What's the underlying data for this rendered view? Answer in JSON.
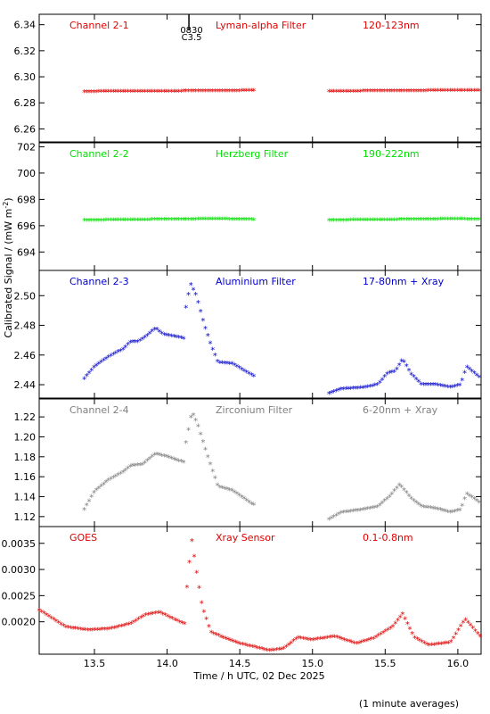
{
  "colors": {
    "red": "#e00000",
    "green": "#00e000",
    "blue": "#0000cc",
    "gray": "#808080",
    "axis": "#000000"
  },
  "flare_marker": {
    "x": 14.15,
    "label_top": "0830",
    "label_bottom": "C3.5"
  },
  "footnote": "(1 minute averages)",
  "chart_data": {
    "type": "scatter",
    "xlabel": "Time / h UTC, 02 Dec 2025",
    "ylabel": "Calibrated Signal / (mW m",
    "ylabel_sup": "-2",
    "ylabel_end": ")",
    "xlim": [
      13.12,
      16.16
    ],
    "xticks": [
      "13.5",
      "14.0",
      "14.5",
      "15.0",
      "15.5",
      "16.0"
    ],
    "xtick_values": [
      13.5,
      14.0,
      14.5,
      15.0,
      15.5,
      16.0
    ],
    "panels": [
      {
        "name": "Channel 2-1",
        "filter": "Lyman-alpha Filter",
        "band": "120-123nm",
        "color": "red",
        "ylim": [
          6.25,
          6.348
        ],
        "yticks": [
          "6.26",
          "6.28",
          "6.30",
          "6.32",
          "6.34"
        ],
        "ytick_values": [
          6.26,
          6.28,
          6.3,
          6.32,
          6.34
        ],
        "keys": [
          [
            13.43,
            6.2885
          ],
          [
            14.0,
            6.2888
          ],
          [
            14.59,
            6.2893
          ],
          [
            15.11,
            6.2887
          ],
          [
            15.6,
            6.2891
          ],
          [
            16.16,
            6.2895
          ]
        ],
        "gaps": [
          [
            14.6,
            15.1
          ]
        ]
      },
      {
        "name": "Channel 2-2",
        "filter": "Herzberg Filter",
        "band": "190-222nm",
        "color": "green",
        "ylim": [
          692.6,
          702.3
        ],
        "yticks": [
          "694",
          "696",
          "698",
          "700",
          "702"
        ],
        "ytick_values": [
          694,
          696,
          698,
          700,
          702
        ],
        "keys": [
          [
            13.43,
            696.4
          ],
          [
            13.9,
            696.45
          ],
          [
            14.35,
            696.5
          ],
          [
            14.59,
            696.45
          ],
          [
            15.11,
            696.4
          ],
          [
            15.6,
            696.45
          ],
          [
            16.0,
            696.5
          ],
          [
            16.16,
            696.45
          ]
        ],
        "gaps": [
          [
            14.6,
            15.1
          ]
        ]
      },
      {
        "name": "Channel 2-3",
        "filter": "Aluminium Filter",
        "band": "17-80nm + Xray",
        "color": "blue",
        "ylim": [
          2.431,
          2.517
        ],
        "yticks": [
          "2.44",
          "2.46",
          "2.48",
          "2.50"
        ],
        "ytick_values": [
          2.44,
          2.46,
          2.48,
          2.5
        ],
        "keys": [
          [
            13.43,
            2.444
          ],
          [
            13.5,
            2.452
          ],
          [
            13.6,
            2.459
          ],
          [
            13.7,
            2.464
          ],
          [
            13.75,
            2.469
          ],
          [
            13.8,
            2.469
          ],
          [
            13.85,
            2.472
          ],
          [
            13.92,
            2.478
          ],
          [
            13.97,
            2.474
          ],
          [
            14.12,
            2.471
          ],
          [
            14.13,
            2.492
          ],
          [
            14.16,
            2.508
          ],
          [
            14.2,
            2.5
          ],
          [
            14.25,
            2.482
          ],
          [
            14.3,
            2.467
          ],
          [
            14.35,
            2.455
          ],
          [
            14.45,
            2.454
          ],
          [
            14.59,
            2.446
          ],
          [
            15.11,
            2.434
          ],
          [
            15.2,
            2.437
          ],
          [
            15.35,
            2.438
          ],
          [
            15.45,
            2.44
          ],
          [
            15.52,
            2.448
          ],
          [
            15.57,
            2.449
          ],
          [
            15.62,
            2.457
          ],
          [
            15.68,
            2.447
          ],
          [
            15.75,
            2.44
          ],
          [
            15.85,
            2.44
          ],
          [
            15.95,
            2.438
          ],
          [
            16.02,
            2.44
          ],
          [
            16.06,
            2.452
          ],
          [
            16.16,
            2.444
          ]
        ],
        "gaps": [
          [
            14.6,
            15.1
          ]
        ]
      },
      {
        "name": "Channel 2-4",
        "filter": "Zirconium Filter",
        "band": "6-20nm + Xray",
        "color": "gray",
        "ylim": [
          1.11,
          1.238
        ],
        "yticks": [
          "1.12",
          "1.14",
          "1.16",
          "1.18",
          "1.20",
          "1.22"
        ],
        "ytick_values": [
          1.12,
          1.14,
          1.16,
          1.18,
          1.2,
          1.22
        ],
        "keys": [
          [
            13.43,
            1.127
          ],
          [
            13.5,
            1.145
          ],
          [
            13.6,
            1.157
          ],
          [
            13.7,
            1.165
          ],
          [
            13.75,
            1.171
          ],
          [
            13.83,
            1.172
          ],
          [
            13.92,
            1.183
          ],
          [
            14.0,
            1.18
          ],
          [
            14.12,
            1.174
          ],
          [
            14.13,
            1.194
          ],
          [
            14.17,
            1.225
          ],
          [
            14.21,
            1.212
          ],
          [
            14.28,
            1.18
          ],
          [
            14.35,
            1.15
          ],
          [
            14.45,
            1.146
          ],
          [
            14.59,
            1.132
          ],
          [
            15.11,
            1.117
          ],
          [
            15.2,
            1.124
          ],
          [
            15.35,
            1.127
          ],
          [
            15.45,
            1.13
          ],
          [
            15.53,
            1.14
          ],
          [
            15.6,
            1.152
          ],
          [
            15.68,
            1.138
          ],
          [
            15.75,
            1.13
          ],
          [
            15.85,
            1.128
          ],
          [
            15.95,
            1.124
          ],
          [
            16.02,
            1.127
          ],
          [
            16.06,
            1.143
          ],
          [
            16.16,
            1.133
          ]
        ],
        "gaps": [
          [
            14.6,
            15.1
          ]
        ]
      },
      {
        "name": "GOES",
        "filter": "Xray Sensor",
        "band": "0.1-0.8nm",
        "color": "red",
        "ylim": [
          0.00138,
          0.00382
        ],
        "yticks": [
          "0.0020",
          "0.0025",
          "0.0030",
          "0.0035"
        ],
        "ytick_values": [
          0.002,
          0.0025,
          0.003,
          0.0035
        ],
        "keys": [
          [
            13.12,
            0.00222
          ],
          [
            13.3,
            0.0019
          ],
          [
            13.45,
            0.00184
          ],
          [
            13.6,
            0.00186
          ],
          [
            13.75,
            0.00196
          ],
          [
            13.85,
            0.00213
          ],
          [
            13.95,
            0.00218
          ],
          [
            14.05,
            0.00204
          ],
          [
            14.12,
            0.00196
          ],
          [
            14.14,
            0.0028
          ],
          [
            14.17,
            0.00355
          ],
          [
            14.2,
            0.003
          ],
          [
            14.24,
            0.0023
          ],
          [
            14.3,
            0.0018
          ],
          [
            14.4,
            0.00168
          ],
          [
            14.5,
            0.00158
          ],
          [
            14.7,
            0.00145
          ],
          [
            14.8,
            0.00148
          ],
          [
            14.9,
            0.0017
          ],
          [
            15.0,
            0.00165
          ],
          [
            15.15,
            0.00172
          ],
          [
            15.3,
            0.00158
          ],
          [
            15.42,
            0.00168
          ],
          [
            15.55,
            0.0019
          ],
          [
            15.62,
            0.00215
          ],
          [
            15.7,
            0.0017
          ],
          [
            15.8,
            0.00155
          ],
          [
            15.95,
            0.0016
          ],
          [
            16.05,
            0.00205
          ],
          [
            16.16,
            0.0017
          ]
        ],
        "gaps": []
      }
    ]
  }
}
